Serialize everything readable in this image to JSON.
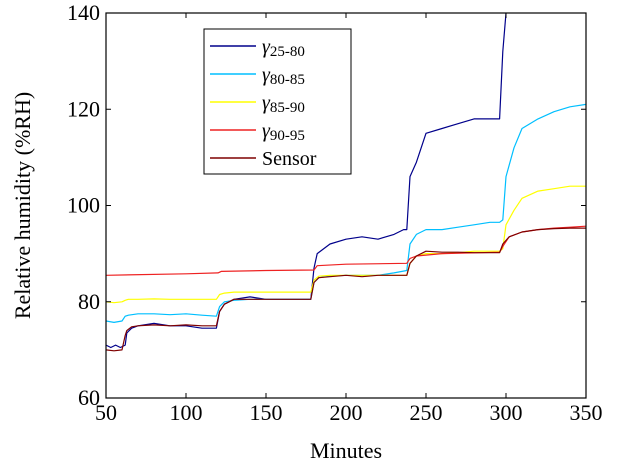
{
  "chart_data": {
    "type": "line",
    "title": "",
    "xlabel": "Minutes",
    "ylabel": "Relative humidity (%RH)",
    "xlim": [
      50,
      350
    ],
    "ylim": [
      60,
      140
    ],
    "xticks": [
      50,
      100,
      150,
      200,
      250,
      300,
      350
    ],
    "yticks": [
      60,
      80,
      100,
      120,
      140
    ],
    "grid": false,
    "legend_position": "top-left",
    "series": [
      {
        "name": "γ25-80",
        "symbol": "γ",
        "subscript": "25-80",
        "color": "#00008b",
        "x": [
          50,
          53,
          56,
          59,
          62,
          63,
          66,
          70,
          80,
          90,
          100,
          110,
          119,
          121,
          124,
          130,
          140,
          150,
          160,
          170,
          178,
          180,
          182,
          190,
          200,
          210,
          220,
          230,
          236,
          238,
          240,
          244,
          250,
          260,
          270,
          280,
          290,
          296,
          298,
          300,
          304
        ],
        "y": [
          71,
          70.5,
          71,
          70.5,
          71,
          73.5,
          74.5,
          75,
          75.5,
          75,
          75,
          74.5,
          74.5,
          78,
          79.5,
          80.5,
          81,
          80.5,
          80.5,
          80.5,
          80.5,
          87,
          90,
          92,
          93,
          93.5,
          93,
          94,
          95,
          95,
          106,
          109,
          115,
          116,
          117,
          118,
          118,
          118,
          132,
          140,
          141
        ]
      },
      {
        "name": "γ80-85",
        "symbol": "γ",
        "subscript": "80-85",
        "color": "#00bfff",
        "x": [
          50,
          55,
          60,
          62,
          64,
          70,
          80,
          90,
          100,
          110,
          119,
          121,
          124,
          130,
          140,
          150,
          160,
          170,
          178,
          180,
          183,
          190,
          200,
          210,
          220,
          230,
          238,
          240,
          244,
          250,
          260,
          270,
          280,
          290,
          296,
          298,
          300,
          305,
          310,
          320,
          330,
          340,
          350
        ],
        "y": [
          76,
          75.7,
          76,
          77,
          77.2,
          77.5,
          77.5,
          77.3,
          77.5,
          77.2,
          77,
          79,
          80,
          80.3,
          80.5,
          80.5,
          80.5,
          80.5,
          80.5,
          84,
          85,
          85.3,
          85.5,
          85.5,
          85.5,
          86,
          86.5,
          92,
          94,
          95,
          95,
          95.5,
          96,
          96.5,
          96.5,
          97,
          106,
          112,
          116,
          118,
          119.5,
          120.5,
          121
        ]
      },
      {
        "name": "γ85-90",
        "symbol": "γ",
        "subscript": "85-90",
        "color": "#ffff00",
        "x": [
          50,
          55,
          60,
          62,
          64,
          70,
          80,
          90,
          100,
          110,
          119,
          121,
          124,
          130,
          140,
          150,
          160,
          170,
          178,
          180,
          183,
          190,
          200,
          210,
          220,
          230,
          238,
          240,
          244,
          250,
          260,
          270,
          280,
          290,
          296,
          298,
          300,
          305,
          310,
          320,
          330,
          340,
          350
        ],
        "y": [
          80,
          79.8,
          80,
          80.3,
          80.5,
          80.5,
          80.6,
          80.5,
          80.5,
          80.5,
          80.5,
          81.5,
          81.8,
          82,
          82,
          82,
          82,
          82,
          82,
          84.5,
          85.3,
          85.5,
          85.5,
          85.5,
          85.5,
          85.5,
          85.5,
          88,
          89.5,
          90,
          90,
          90.2,
          90.5,
          90.5,
          90.5,
          91,
          96,
          99,
          101.5,
          103,
          103.5,
          104,
          104
        ]
      },
      {
        "name": "γ90-95",
        "symbol": "γ",
        "subscript": "90-95",
        "color": "#ee2222",
        "x": [
          50,
          100,
          120,
          122,
          150,
          180,
          182,
          200,
          238,
          240,
          244,
          260,
          296,
          298,
          302,
          310,
          320,
          330,
          340,
          350
        ],
        "y": [
          85.5,
          85.8,
          86,
          86.3,
          86.5,
          86.6,
          87.5,
          87.8,
          88,
          89,
          89.5,
          90,
          90.3,
          91.5,
          93.5,
          94.5,
          95,
          95.3,
          95.5,
          95.7
        ]
      },
      {
        "name": "Sensor",
        "color": "#7f0000",
        "x": [
          50,
          55,
          60,
          62,
          63,
          66,
          70,
          80,
          90,
          100,
          110,
          119,
          121,
          124,
          130,
          140,
          150,
          160,
          170,
          178,
          180,
          183,
          190,
          200,
          210,
          220,
          230,
          238,
          240,
          244,
          250,
          260,
          270,
          280,
          290,
          296,
          298,
          302,
          310,
          320,
          330,
          340,
          350
        ],
        "y": [
          70,
          69.8,
          70,
          73,
          74,
          74.8,
          75,
          75.2,
          75,
          75.2,
          75,
          75,
          78,
          79.5,
          80.5,
          80.5,
          80.5,
          80.5,
          80.5,
          80.5,
          84,
          85,
          85.2,
          85.5,
          85.2,
          85.5,
          85.5,
          85.5,
          88,
          89.5,
          90.5,
          90.3,
          90.3,
          90.2,
          90.2,
          90.2,
          92,
          93.5,
          94.5,
          95,
          95.2,
          95.3,
          95.3
        ]
      }
    ]
  }
}
